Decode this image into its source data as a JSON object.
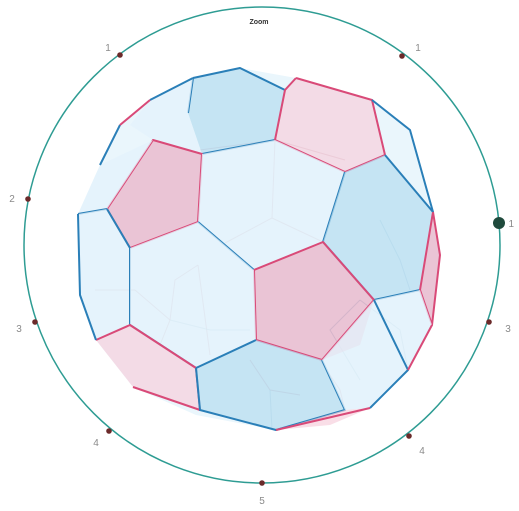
{
  "title": "Zoom",
  "dial": {
    "ring_color": "#2e9c93",
    "tick_color": "#6b2a2a",
    "handle_color": "#1f4a3c",
    "labels": {
      "upper_left": "1",
      "upper_right": "1",
      "right": "1",
      "left_upper": "2",
      "left_lower": "3",
      "right_lower": "3",
      "lower_left": "4",
      "lower_right": "4",
      "bottom": "5"
    }
  },
  "model": {
    "shape": "truncated-icosahedron",
    "hexagon_edge_color": "#2a7fb8",
    "pentagon_edge_color": "#d94a78",
    "hexagon_fill": "#b8ddf0",
    "pentagon_fill": "#ea9bb5"
  }
}
